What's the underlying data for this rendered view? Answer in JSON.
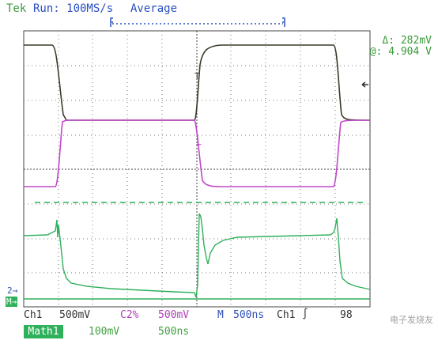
{
  "header": {
    "brand": "Tek",
    "run_status": "Run: 100MS/s",
    "mode": "Average"
  },
  "cursor_readout": {
    "delta": "Δ: 282mV",
    "at": "@: 4.904 V"
  },
  "markers": {
    "ch2_marker": "2→",
    "math_marker": "M→"
  },
  "bottom_bar": {
    "ch1_label": "Ch1",
    "ch1_scale": "500mV",
    "ch2_label": "C2%",
    "ch2_scale": "500mV",
    "timebase_label": "M",
    "timebase_value": "500ns",
    "trigger_source": "Ch1",
    "trigger_slope": "∫",
    "trigger_level": "98",
    "math_label": "Math1",
    "math_scale": "100mV",
    "math_time": "500ns"
  },
  "watermark": "电子发烧友",
  "colors": {
    "ch1": "#3a3a2a",
    "ch2": "#c048c8",
    "math": "#2fb05a",
    "header_blue": "#2a4fc0",
    "header_green": "#3a9a3a",
    "grid": "#555555",
    "text_blue": "#3050b8",
    "text_purple": "#b040b8",
    "text_green": "#40a040"
  }
}
